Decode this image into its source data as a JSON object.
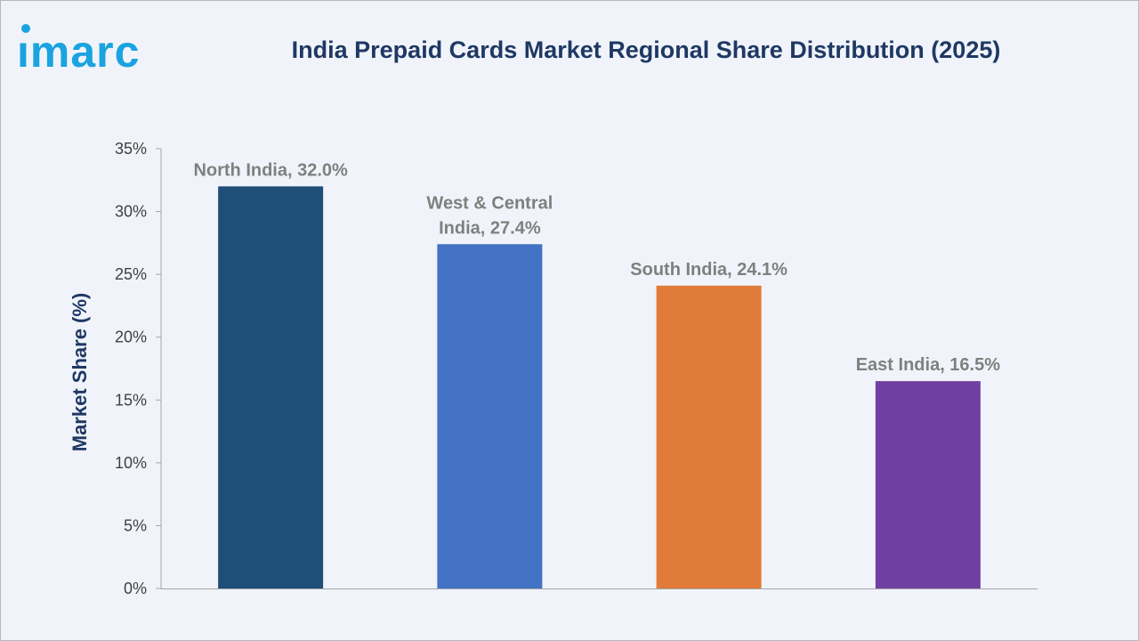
{
  "header": {
    "brand": "imarc",
    "title": "India Prepaid Cards Market Regional Share Distribution (2025)"
  },
  "colors": {
    "brand": "#1ba3e0",
    "title": "#1f3864",
    "background": "#f0f4fa"
  },
  "chart_data": {
    "type": "bar",
    "title": "India Prepaid Cards Market Regional Share Distribution (2025)",
    "xlabel": "",
    "ylabel": "Market Share (%)",
    "ylim": [
      0,
      35
    ],
    "yticks": [
      "0%",
      "5%",
      "10%",
      "15%",
      "20%",
      "25%",
      "30%",
      "35%"
    ],
    "grid": false,
    "legend": "none",
    "categories": [
      "North India",
      "West & Central India",
      "South India",
      "East India"
    ],
    "values": [
      32.0,
      27.4,
      24.1,
      16.5
    ],
    "data_labels": [
      [
        "North India, 32.0%"
      ],
      [
        "West & Central",
        "India, 27.4%"
      ],
      [
        "South India, 24.1%"
      ],
      [
        "East India, 16.5%"
      ]
    ],
    "colors": [
      "#1f4e79",
      "#4472c4",
      "#e07b39",
      "#7040a0"
    ]
  }
}
